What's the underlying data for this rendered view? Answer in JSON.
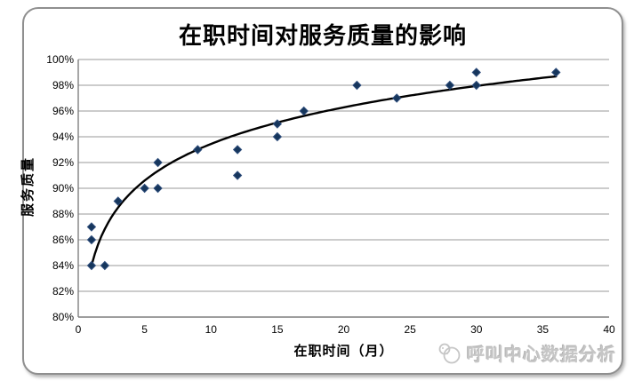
{
  "watermark": {
    "text": "呼叫中心数据分析",
    "icon": "cloud-logo-icon"
  },
  "chart_data": {
    "type": "scatter",
    "title": "在职时间对服务质量的影响",
    "xlabel": "在职时间（月）",
    "ylabel": "服务质量",
    "xlim": [
      0,
      40
    ],
    "ylim": [
      80,
      100
    ],
    "x_unit": "months",
    "y_unit": "percent",
    "x_ticks": [
      0,
      5,
      10,
      15,
      20,
      25,
      30,
      35,
      40
    ],
    "y_ticks": [
      "100%",
      "98%",
      "96%",
      "94%",
      "92%",
      "90%",
      "88%",
      "86%",
      "84%",
      "82%",
      "80%"
    ],
    "grid": "horizontal",
    "legend": "none",
    "points": [
      [
        1,
        84
      ],
      [
        1,
        86
      ],
      [
        1,
        87
      ],
      [
        2,
        84
      ],
      [
        3,
        89
      ],
      [
        5,
        90
      ],
      [
        6,
        90
      ],
      [
        6,
        92
      ],
      [
        9,
        93
      ],
      [
        12,
        91
      ],
      [
        12,
        93
      ],
      [
        15,
        94
      ],
      [
        15,
        95
      ],
      [
        17,
        96
      ],
      [
        21,
        98
      ],
      [
        24,
        97
      ],
      [
        28,
        98
      ],
      [
        30,
        98
      ],
      [
        30,
        99
      ],
      [
        36,
        99
      ]
    ],
    "trendline": {
      "type": "logarithmic",
      "a": 4.1,
      "b": 84.0,
      "x_start": 1,
      "x_end": 36
    },
    "colors": {
      "marker": "#16365c",
      "marker_edge": "#2e4d7b",
      "trendline": "#000000",
      "gridline": "#9a9a9a",
      "axis": "#7f7f7f",
      "text": "#000000",
      "watermark": "#c6c6c6"
    }
  }
}
